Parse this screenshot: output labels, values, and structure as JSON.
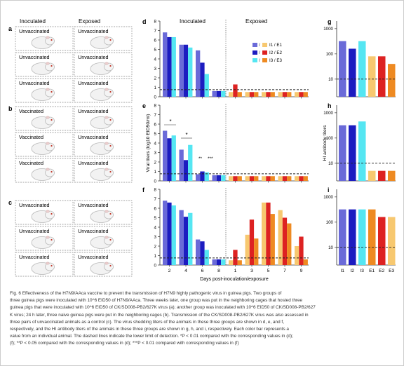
{
  "colors": {
    "purple": "#6a6ad8",
    "blue": "#1c1cc0",
    "cyan": "#55e6f2",
    "yellow": "#f7c870",
    "red": "#dd2222",
    "orange": "#ee8a22",
    "panel_border": "#888888",
    "dash": "#222222"
  },
  "panels_abc": {
    "headers": [
      "Inoculated",
      "Exposed"
    ],
    "groups": [
      {
        "letter": "a",
        "rows": [
          [
            "Unvaccinated",
            "Unvaccinated"
          ],
          [
            "Unvaccinated",
            "Unvaccinated"
          ],
          [
            "Unvaccinated",
            "Unvaccinated"
          ]
        ]
      },
      {
        "letter": "b",
        "rows": [
          [
            "Vaccinated",
            "Unvaccinated"
          ],
          [
            "Vaccinated",
            "Unvaccinated"
          ],
          [
            "Vaccinated",
            "Unvaccinated"
          ]
        ]
      },
      {
        "letter": "c",
        "rows": [
          [
            "Unvaccinated",
            "Unvaccinated"
          ],
          [
            "Unvaccinated",
            "Unvaccinated"
          ],
          [
            "Unvaccinated",
            "Unvaccinated"
          ]
        ]
      }
    ]
  },
  "shedding": {
    "letters": [
      "d",
      "e",
      "f"
    ],
    "section_labels": [
      "Inoculated",
      "Exposed"
    ],
    "ylabel": "Viral titers (log10 EID50/ml)",
    "yticks": [
      "0",
      "1",
      "2",
      "3",
      "4",
      "5",
      "6",
      "7",
      "8"
    ],
    "xticks": [
      "2",
      "4",
      "6",
      "8",
      "1",
      "3",
      "5",
      "7",
      "9"
    ],
    "xlabel": "Days post-inoculation/exposure",
    "legend": [
      "I1 / E1",
      "I2 / E2",
      "I3 / E3"
    ],
    "annotations_e": [
      "*",
      "*",
      "**",
      "***"
    ]
  },
  "hi": {
    "letters": [
      "g",
      "h",
      "i"
    ],
    "ylabel": "HI antibody titers",
    "yticks": [
      "10",
      "100",
      "1000"
    ],
    "xticks": [
      "I1",
      "I2",
      "I3",
      "E1",
      "E2",
      "E3"
    ]
  },
  "chart_data": [
    {
      "panel": "d",
      "type": "bar",
      "ylim": [
        0,
        8
      ],
      "categories": [
        "2",
        "4",
        "6",
        "8",
        "1",
        "3",
        "5",
        "7",
        "9"
      ],
      "series": [
        {
          "name": "I1 / E1",
          "values": [
            6.8,
            5.5,
            4.9,
            0.6,
            0.5,
            0.5,
            0.5,
            0.5,
            0.5
          ]
        },
        {
          "name": "I2 / E2",
          "values": [
            6.3,
            5.5,
            3.6,
            0.6,
            1.3,
            0.5,
            0.5,
            0.5,
            0.5
          ]
        },
        {
          "name": "I3 / E3",
          "values": [
            6.3,
            5.2,
            2.4,
            0.6,
            0.5,
            0.5,
            0.5,
            0.5,
            0.5
          ]
        }
      ]
    },
    {
      "panel": "e",
      "type": "bar",
      "ylim": [
        0,
        8
      ],
      "categories": [
        "2",
        "4",
        "6",
        "8",
        "1",
        "3",
        "5",
        "7",
        "9"
      ],
      "series": [
        {
          "name": "I1 / E1",
          "values": [
            5.3,
            3.3,
            0.7,
            0.6,
            0.5,
            0.5,
            0.5,
            0.5,
            0.5
          ]
        },
        {
          "name": "I2 / E2",
          "values": [
            4.5,
            2.2,
            1.0,
            0.6,
            0.5,
            0.5,
            0.5,
            0.5,
            0.5
          ]
        },
        {
          "name": "I3 / E3",
          "values": [
            4.8,
            3.8,
            0.9,
            0.6,
            0.5,
            0.5,
            0.5,
            0.5,
            0.5
          ]
        }
      ]
    },
    {
      "panel": "f",
      "type": "bar",
      "ylim": [
        0,
        8
      ],
      "categories": [
        "2",
        "4",
        "6",
        "8",
        "1",
        "3",
        "5",
        "7",
        "9"
      ],
      "series": [
        {
          "name": "I1 / E1",
          "values": [
            6.8,
            5.8,
            2.7,
            0.6,
            0.5,
            3.2,
            6.6,
            5.8,
            2.0
          ]
        },
        {
          "name": "I2 / E2",
          "values": [
            6.6,
            5.1,
            2.5,
            0.6,
            1.6,
            4.8,
            6.6,
            5.0,
            3.0
          ]
        },
        {
          "name": "I3 / E3",
          "values": [
            6.3,
            5.5,
            1.6,
            0.6,
            0.5,
            2.8,
            5.4,
            4.4,
            0.6
          ]
        }
      ]
    },
    {
      "panel": "g",
      "type": "bar",
      "yscale": "log",
      "ylim": [
        2,
        2000
      ],
      "categories": [
        "I1",
        "I2",
        "I3",
        "E1",
        "E2",
        "E3"
      ],
      "values": [
        320,
        160,
        320,
        80,
        80,
        40
      ]
    },
    {
      "panel": "h",
      "type": "bar",
      "yscale": "log",
      "ylim": [
        2,
        2000
      ],
      "categories": [
        "I1",
        "I2",
        "I3",
        "E1",
        "E2",
        "E3"
      ],
      "values": [
        320,
        320,
        453,
        5,
        5,
        5
      ]
    },
    {
      "panel": "i",
      "type": "bar",
      "yscale": "log",
      "ylim": [
        2,
        2000
      ],
      "categories": [
        "I1",
        "I2",
        "I3",
        "E1",
        "E2",
        "E3"
      ],
      "values": [
        320,
        320,
        320,
        320,
        160,
        160
      ]
    }
  ],
  "caption": [
    "Fig. 6 Effectiveness of the H7N9/AAca vaccine to prevent the transmission of H7N9 highly pathogenic virus in guinea pigs. Two groups of",
    "three guinea pigs were inoculated with 10^6 EID50 of H7N9/AAca. Three weeks later, one group was put in the neighboring cages that hosted three",
    "guinea pigs that were inoculated with 10^6 EID50 of CK/SD008-PB2/627K virus (a); another group was inoculated with 10^6 EID50 of CK/SD008-PB2/627",
    "K virus; 24 h later, three naive guinea pigs were put in the neighboring cages (b). Transmission of the CK/SD008-PB2/627K virus was also assessed in",
    "three pairs of unvaccinated animals as a control (c). The virus shedding titers of the animals in these three groups are shown in d, e, and f,",
    "respectively, and the HI antibody titers of the animals in these three groups are shown in g, h, and i, respectively. Each color bar represents a",
    "value from an individual animal. The dashed lines indicate the lower limit of detection. *P < 0.01 compared with the corresponding values in (d);",
    "(f); **P < 0.05 compared with the corresponding values in (d); ***P < 0.01 compared with corresponding values in (f)"
  ]
}
